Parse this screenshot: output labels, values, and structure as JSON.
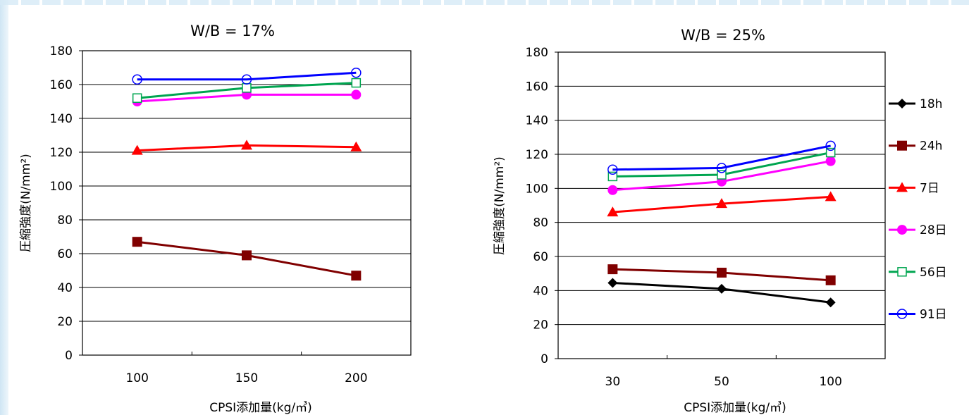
{
  "chart_data": [
    {
      "type": "line",
      "title": "W/B = 17%",
      "xlabel": "CPSⅠ添加量(kg/㎥)",
      "ylabel": "圧縮強度(N/mm²)",
      "categories": [
        "100",
        "150",
        "200"
      ],
      "ylim": [
        0,
        180
      ],
      "yticks": [
        0,
        20,
        40,
        60,
        80,
        100,
        120,
        140,
        160,
        180
      ],
      "grid": true,
      "series": [
        {
          "name": "24h",
          "color": "#800000",
          "marker": "square-filled",
          "values": [
            67,
            59,
            47
          ]
        },
        {
          "name": "7日",
          "color": "#ff0000",
          "marker": "triangle-filled",
          "values": [
            121,
            124,
            123
          ]
        },
        {
          "name": "28日",
          "color": "#ff00ff",
          "marker": "circle-filled",
          "values": [
            150,
            154,
            154
          ]
        },
        {
          "name": "56日",
          "color": "#00a550",
          "marker": "square-open",
          "values": [
            152,
            158,
            161
          ]
        },
        {
          "name": "91日",
          "color": "#0000ff",
          "marker": "circle-open",
          "values": [
            163,
            163,
            167
          ]
        }
      ]
    },
    {
      "type": "line",
      "title": "W/B = 25%",
      "xlabel": "CPSⅠ添加量(kg/㎥)",
      "ylabel": "圧縮強度(N/mm²)",
      "categories": [
        "30",
        "50",
        "100"
      ],
      "ylim": [
        0,
        180
      ],
      "yticks": [
        0,
        20,
        40,
        60,
        80,
        100,
        120,
        140,
        160,
        180
      ],
      "grid": true,
      "legend_position": "right",
      "series": [
        {
          "name": "18h",
          "color": "#000000",
          "marker": "diamond-filled",
          "values": [
            44.5,
            41,
            33
          ]
        },
        {
          "name": "24h",
          "color": "#800000",
          "marker": "square-filled",
          "values": [
            52.5,
            50.5,
            46
          ]
        },
        {
          "name": "7日",
          "color": "#ff0000",
          "marker": "triangle-filled",
          "values": [
            86,
            91,
            95
          ]
        },
        {
          "name": "28日",
          "color": "#ff00ff",
          "marker": "circle-filled",
          "values": [
            99,
            104,
            116
          ]
        },
        {
          "name": "56日",
          "color": "#00a550",
          "marker": "square-open",
          "values": [
            107,
            108,
            121
          ]
        },
        {
          "name": "91日",
          "color": "#0000ff",
          "marker": "circle-open",
          "values": [
            111,
            112,
            125
          ]
        }
      ]
    }
  ]
}
